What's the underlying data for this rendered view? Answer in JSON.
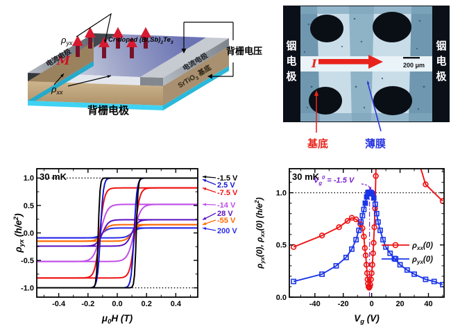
{
  "schematic": {
    "rho_yx": "ρ_{yx}",
    "rho_xx": "ρ_{xx}",
    "magnetization": "M",
    "film_label": "Cr-doped (Bi,Sb)_{2}Te_{3}",
    "electrode_left": "电流电极",
    "electrode_right": "电流电极",
    "substrate_label": "SrTiO_{3} 基底",
    "back_gate_voltage": "背栅电压",
    "back_gate_electrode": "背栅电极",
    "colors": {
      "film_front": "#d3d8e4",
      "film_back": "#6a73b4",
      "substrate": "#c6ad85",
      "gate_layer": "#3fd2f2",
      "moment_head": "#d81a30",
      "moment_shaft": "#77122a"
    }
  },
  "photo": {
    "electrode_left": "铟电极",
    "electrode_right": "铟电极",
    "current_label": "I",
    "scale_bar": "200 μm",
    "substrate_label": "基底",
    "film_label": "薄膜",
    "colors": {
      "background": "#0a0f18",
      "film_bright": "#c9dde9",
      "channel_bright": "#e9f3f8",
      "film_mid": "#7fa6bd",
      "substrate_label_color": "#e8251c",
      "film_label_color": "#2936e0"
    }
  },
  "chart_data": [
    {
      "type": "line",
      "subtype": "hysteresis",
      "inset": "30 mK",
      "xlabel": "μ_{0}H (T)",
      "ylabel": "ρ_{yx} (h/e^{2})",
      "xlim": [
        -0.55,
        0.55
      ],
      "ylim": [
        -1.17,
        1.17
      ],
      "xticks": [
        -0.4,
        -0.2,
        0,
        0.2,
        0.4
      ],
      "xtick_labels": [
        "-0.4",
        "-0.2",
        "0.0",
        "0.2",
        "0.4"
      ],
      "yticks": [
        -1,
        -0.5,
        0,
        0.5,
        1
      ],
      "ytick_labels": [
        "-1.0",
        "-0.5",
        "0.0",
        "0.5",
        "1.0"
      ],
      "x_minor_step": 0.1,
      "y_minor_step": 0.25,
      "ref_lines_y": [
        1.0,
        -1.0
      ],
      "legend_note": "gate voltages, arrows point to saturation level of each loop",
      "series": [
        {
          "label": "-1.5 V",
          "color": "#000000",
          "saturation": 1.0,
          "coercive_field": 0.13,
          "transition_width": 0.012
        },
        {
          "label": "2.5 V",
          "color": "#1414d2",
          "saturation": 1.0,
          "coercive_field": 0.115,
          "transition_width": 0.02
        },
        {
          "label": "-7.5 V",
          "color": "#ee1111",
          "saturation": 0.82,
          "coercive_field": 0.12,
          "transition_width": 0.032
        },
        {
          "label": "-14 V",
          "color": "#c04ee8",
          "saturation": 0.52,
          "coercive_field": 0.115,
          "transition_width": 0.045
        },
        {
          "label": "28 V",
          "color": "#5a10c0",
          "saturation": 0.24,
          "coercive_field": 0.1,
          "transition_width": 0.04
        },
        {
          "label": "-55 V",
          "color": "#ff6600",
          "saturation": 0.15,
          "coercive_field": 0.1,
          "transition_width": 0.04
        },
        {
          "label": "200 V",
          "color": "#2a2ae8",
          "saturation": 0.09,
          "coercive_field": 0.1,
          "transition_width": 0.04
        }
      ]
    },
    {
      "type": "scatter",
      "inset": "30 mK",
      "xlabel": "V_{g} (V)",
      "ylabel": "ρ_{yx}(0), ρ_{xx}(0) (h/e^{2})",
      "xlim": [
        -58,
        51
      ],
      "ylim": [
        0,
        1.23
      ],
      "xticks": [
        -40,
        -20,
        0,
        20,
        40
      ],
      "xtick_labels": [
        "-40",
        "-20",
        "0",
        "20",
        "40"
      ],
      "yticks": [
        0,
        0.5,
        1
      ],
      "ytick_labels": [
        "0.0",
        "0.5",
        "1.0"
      ],
      "x_minor_step": 10,
      "y_minor_step": 0.1,
      "ref_lines_y": [
        1.0
      ],
      "vline": {
        "x": -1.5,
        "color": "#7a22cc",
        "label": "V_{g}^{0} = -1.5 V"
      },
      "series": [
        {
          "label": "ρ_{xx}(0)",
          "color": "#ee1111",
          "marker": "circle",
          "segments": [
            [
              [
                -55,
                0.48
              ],
              [
                -35,
                0.59
              ],
              [
                -23,
                0.67
              ],
              [
                -17,
                0.73
              ],
              [
                -14,
                0.76
              ],
              [
                -11,
                0.745
              ],
              [
                -8,
                0.7
              ],
              [
                -6.5,
                0.66
              ],
              [
                -5.5,
                0.58
              ],
              [
                -4.8,
                0.47
              ],
              [
                -4.2,
                0.4
              ],
              [
                -3.7,
                0.31
              ],
              [
                -3.2,
                0.23
              ],
              [
                -2.9,
                0.17
              ],
              [
                -2.6,
                0.13
              ],
              [
                -2.2,
                0.1
              ],
              [
                -1.8,
                0.09
              ],
              [
                -1.4,
                0.1
              ],
              [
                -1.0,
                0.12
              ],
              [
                -0.5,
                0.17
              ],
              [
                0,
                0.23
              ],
              [
                0.5,
                0.31
              ],
              [
                1.0,
                0.42
              ],
              [
                1.4,
                0.52
              ],
              [
                1.9,
                0.67
              ],
              [
                2.4,
                0.85
              ],
              [
                2.9,
                1.16
              ],
              [
                3.3,
                1.4
              ]
            ],
            [
              [
                32,
                1.35
              ],
              [
                38,
                1.08
              ],
              [
                50,
                0.92
              ]
            ]
          ]
        },
        {
          "label": "ρ_{yx}(0)",
          "color": "#1a35e8",
          "marker": "square",
          "filled_range": [
            -4.6,
            1.6
          ],
          "segments": [
            [
              [
                -55,
                0.15
              ],
              [
                -35,
                0.22
              ],
              [
                -25,
                0.3
              ],
              [
                -18,
                0.38
              ],
              [
                -14,
                0.46
              ],
              [
                -11,
                0.55
              ],
              [
                -9,
                0.64
              ],
              [
                -7.5,
                0.72
              ],
              [
                -6.5,
                0.78
              ],
              [
                -5.5,
                0.84
              ],
              [
                -4.5,
                0.9
              ],
              [
                -3.5,
                0.96
              ],
              [
                -2.5,
                1.0
              ],
              [
                -1.5,
                1.005
              ],
              [
                -0.5,
                1.0
              ],
              [
                0.5,
                0.99
              ],
              [
                1.5,
                0.95
              ],
              [
                2.5,
                0.89
              ],
              [
                3.5,
                0.8
              ],
              [
                4.5,
                0.72
              ],
              [
                6,
                0.64
              ],
              [
                8,
                0.55
              ],
              [
                10,
                0.48
              ],
              [
                13,
                0.42
              ],
              [
                16,
                0.37
              ],
              [
                20,
                0.31
              ],
              [
                25,
                0.26
              ],
              [
                30,
                0.22
              ],
              [
                38,
                0.17
              ],
              [
                44,
                0.15
              ],
              [
                50,
                0.12
              ]
            ]
          ]
        }
      ]
    }
  ]
}
